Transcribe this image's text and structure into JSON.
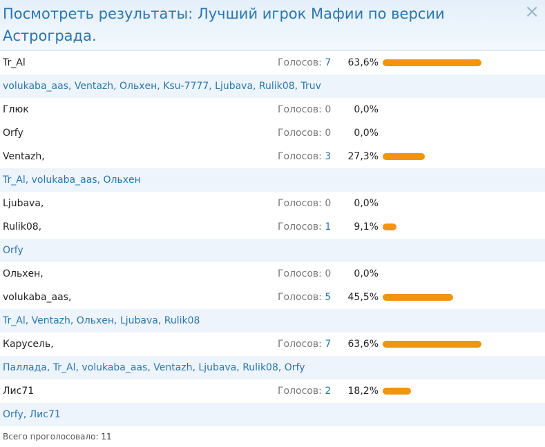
{
  "header": {
    "title": "Посмотреть результаты: Лучший игрок Мафии по версии Астрограда.",
    "close": "×"
  },
  "votes_label": "Голосов:",
  "options": [
    {
      "name": "Tr_Al",
      "votes": 7,
      "percent": "63,6%",
      "voters": "volukaba_aas, Ventazh, Ольхен, Ksu-7777, Ljubava, Rulik08, Truv"
    },
    {
      "name": "Глюк",
      "votes": 0,
      "percent": "0,0%"
    },
    {
      "name": "Orfy",
      "votes": 0,
      "percent": "0,0%"
    },
    {
      "name": "Ventazh,",
      "votes": 3,
      "percent": "27,3%",
      "voters": "Tr_Al, volukaba_aas, Ольхен"
    },
    {
      "name": "Ljubava,",
      "votes": 0,
      "percent": "0,0%"
    },
    {
      "name": "Rulik08,",
      "votes": 1,
      "percent": "9,1%",
      "voters": "Orfy"
    },
    {
      "name": "Ольхен,",
      "votes": 0,
      "percent": "0,0%"
    },
    {
      "name": "volukaba_aas,",
      "votes": 5,
      "percent": "45,5%",
      "voters": "Tr_Al, Ventazh, Ольхен, Ljubava, Rulik08"
    },
    {
      "name": "Карусель,",
      "votes": 7,
      "percent": "63,6%",
      "voters": "Паллада, Tr_Al, volukaba_aas, Ventazh, Ljubava, Rulik08, Orfy"
    },
    {
      "name": "Лис71",
      "votes": 2,
      "percent": "18,2%",
      "voters": "Orfy, Лис71"
    }
  ],
  "footer": {
    "label": "Всего проголосовало:",
    "total": 11
  }
}
